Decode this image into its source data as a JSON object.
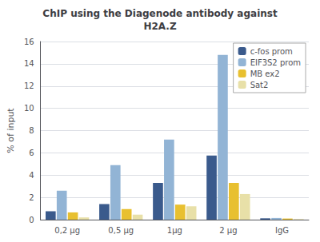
{
  "chart_data": {
    "type": "bar",
    "title": "ChIP using the Diagenode antibody against\nH2A.Z",
    "ylabel": "% of input",
    "categories": [
      "0,2 μg",
      "0,5 μg",
      "1μg",
      "2 μg",
      "IgG"
    ],
    "series": [
      {
        "name": "c-fos prom",
        "color": "#3A5A8C",
        "values": [
          0.75,
          1.4,
          3.3,
          5.75,
          0.12
        ]
      },
      {
        "name": "EIF3S2 prom",
        "color": "#92B4D5",
        "values": [
          2.6,
          4.9,
          7.2,
          14.8,
          0.15
        ]
      },
      {
        "name": "MB ex2",
        "color": "#E8C030",
        "values": [
          0.65,
          0.95,
          1.35,
          3.3,
          0.1
        ]
      },
      {
        "name": "Sat2",
        "color": "#E8E0A8",
        "values": [
          0.2,
          0.45,
          1.2,
          2.3,
          0.05
        ]
      }
    ],
    "ylim": [
      0,
      16
    ],
    "yticks": [
      0,
      2,
      4,
      6,
      8,
      10,
      12,
      14,
      16
    ],
    "grid": true,
    "legend": "upper right"
  }
}
